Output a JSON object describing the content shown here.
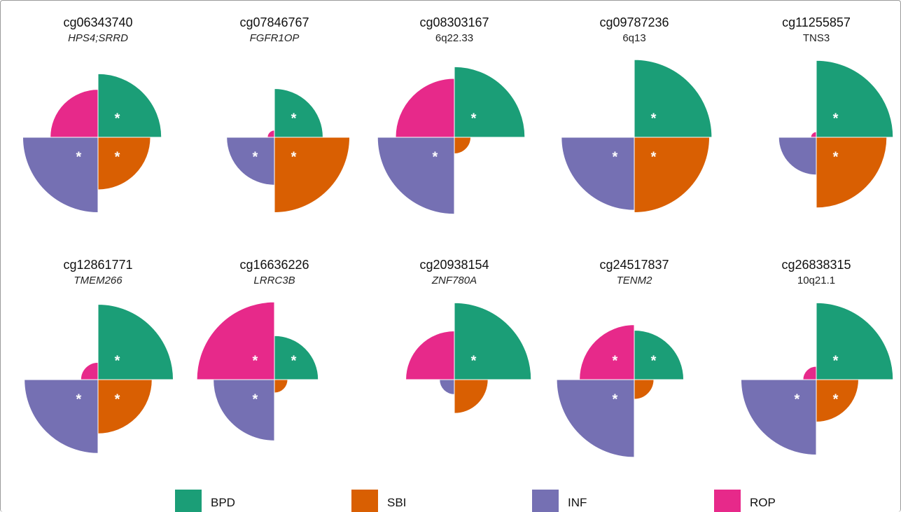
{
  "chart_data": {
    "type": "polar-quadrant",
    "max_value": 1.0,
    "significance_marker": "*",
    "categories": [
      {
        "name": "BPD",
        "color": "#1b9e77",
        "quadrant": "top-right"
      },
      {
        "name": "SBI",
        "color": "#d95f02",
        "quadrant": "bottom-right"
      },
      {
        "name": "INF",
        "color": "#7570b3",
        "quadrant": "bottom-left"
      },
      {
        "name": "ROP",
        "color": "#e7298a",
        "quadrant": "top-left"
      }
    ],
    "legend": [
      "BPD",
      "SBI",
      "INF",
      "ROP"
    ],
    "panels": [
      {
        "cpg": "cg06343740",
        "gene": "HPS4;SRRD",
        "gene_italic": true,
        "values": {
          "BPD": 0.81,
          "SBI": 0.67,
          "INF": 0.96,
          "ROP": 0.61
        },
        "significant": {
          "BPD": true,
          "SBI": true,
          "INF": true,
          "ROP": false
        }
      },
      {
        "cpg": "cg07846767",
        "gene": "FGFR1OP",
        "gene_italic": true,
        "values": {
          "BPD": 0.62,
          "SBI": 0.96,
          "INF": 0.61,
          "ROP": 0.09
        },
        "significant": {
          "BPD": true,
          "SBI": true,
          "INF": true,
          "ROP": false
        }
      },
      {
        "cpg": "cg08303167",
        "gene": "6q22.33",
        "gene_italic": false,
        "values": {
          "BPD": 0.9,
          "SBI": 0.21,
          "INF": 0.98,
          "ROP": 0.75
        },
        "significant": {
          "BPD": true,
          "SBI": false,
          "INF": true,
          "ROP": false
        }
      },
      {
        "cpg": "cg09787236",
        "gene": "6q13",
        "gene_italic": false,
        "values": {
          "BPD": 0.99,
          "SBI": 0.96,
          "INF": 0.93,
          "ROP": 0.0
        },
        "significant": {
          "BPD": true,
          "SBI": true,
          "INF": true,
          "ROP": false
        }
      },
      {
        "cpg": "cg11255857",
        "gene": "TNS3",
        "gene_italic": false,
        "values": {
          "BPD": 0.98,
          "SBI": 0.9,
          "INF": 0.48,
          "ROP": 0.07
        },
        "significant": {
          "BPD": true,
          "SBI": true,
          "INF": false,
          "ROP": false
        }
      },
      {
        "cpg": "cg12861771",
        "gene": "TMEM266",
        "gene_italic": true,
        "values": {
          "BPD": 0.96,
          "SBI": 0.69,
          "INF": 0.94,
          "ROP": 0.22
        },
        "significant": {
          "BPD": true,
          "SBI": true,
          "INF": true,
          "ROP": false
        }
      },
      {
        "cpg": "cg16636226",
        "gene": "LRRC3B",
        "gene_italic": true,
        "values": {
          "BPD": 0.56,
          "SBI": 0.17,
          "INF": 0.78,
          "ROP": 0.99
        },
        "significant": {
          "BPD": true,
          "SBI": false,
          "INF": true,
          "ROP": true
        }
      },
      {
        "cpg": "cg20938154",
        "gene": "ZNF780A",
        "gene_italic": true,
        "values": {
          "BPD": 0.98,
          "SBI": 0.43,
          "INF": 0.19,
          "ROP": 0.62
        },
        "significant": {
          "BPD": true,
          "SBI": false,
          "INF": false,
          "ROP": false
        }
      },
      {
        "cpg": "cg24517837",
        "gene": "TENM2",
        "gene_italic": true,
        "values": {
          "BPD": 0.63,
          "SBI": 0.25,
          "INF": 0.99,
          "ROP": 0.7
        },
        "significant": {
          "BPD": true,
          "SBI": false,
          "INF": true,
          "ROP": true
        }
      },
      {
        "cpg": "cg26838315",
        "gene": "10q21.1",
        "gene_italic": false,
        "values": {
          "BPD": 0.98,
          "SBI": 0.54,
          "INF": 0.96,
          "ROP": 0.17
        },
        "significant": {
          "BPD": true,
          "SBI": true,
          "INF": true,
          "ROP": false
        }
      }
    ]
  }
}
